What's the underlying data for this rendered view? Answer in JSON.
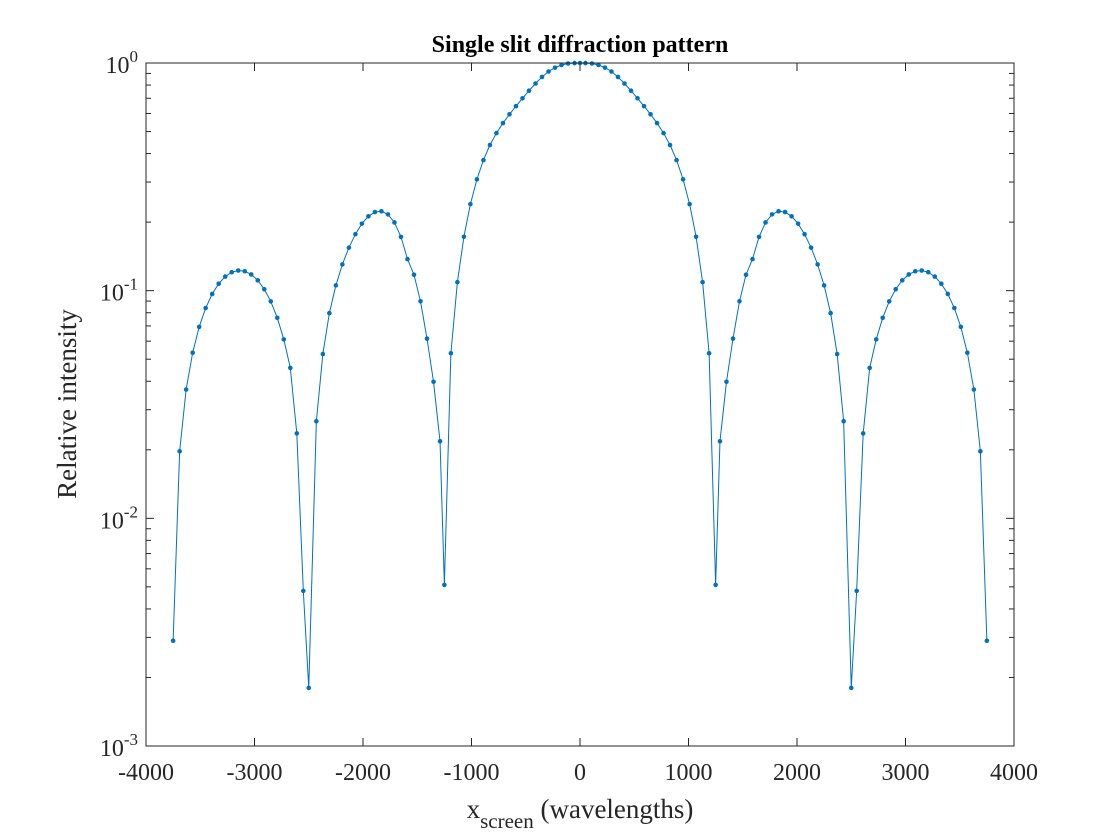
{
  "chart_data": {
    "type": "line",
    "title": "Single slit diffraction pattern",
    "xlabel": {
      "main": "x",
      "subscript": "screen",
      "suffix": " (wavelengths)"
    },
    "ylabel": "Relative intensity",
    "xlim": [
      -4000,
      4000
    ],
    "ylim": [
      0.001,
      1
    ],
    "yscale": "log",
    "grid": false,
    "x_ticks": [
      -4000,
      -3000,
      -2000,
      -1000,
      0,
      1000,
      2000,
      3000,
      4000
    ],
    "x_tick_labels": [
      "-4000",
      "-3000",
      "-2000",
      "-1000",
      "0",
      "1000",
      "2000",
      "3000",
      "4000"
    ],
    "y_ticks": [
      {
        "value": 1,
        "base": "10",
        "exp": "0"
      },
      {
        "value": 0.1,
        "base": "10",
        "exp": "-1"
      },
      {
        "value": 0.01,
        "base": "10",
        "exp": "-2"
      },
      {
        "value": 0.001,
        "base": "10",
        "exp": "-3"
      }
    ],
    "line_color": "#0072BD",
    "series": [
      {
        "x": [
          -3750,
          -3690,
          -3630,
          -3570,
          -3510,
          -3450,
          -3390,
          -3330,
          -3270,
          -3210,
          -3150,
          -3090,
          -3030,
          -2970,
          -2910,
          -2850,
          -2790,
          -2730,
          -2670,
          -2610,
          -2550,
          -2500,
          -2430,
          -2370,
          -2310,
          -2250,
          -2190,
          -2130,
          -2070,
          -2010,
          -1950,
          -1890,
          -1830,
          -1770,
          -1710,
          -1650,
          -1590,
          -1530,
          -1470,
          -1410,
          -1350,
          -1290,
          -1250,
          -1190,
          -1130,
          -1070,
          -1010,
          -950,
          -890,
          -830,
          -770,
          -710,
          -650,
          -590,
          -530,
          -470,
          -410,
          -350,
          -290,
          -230,
          -170,
          -110,
          -50,
          0,
          50,
          110,
          170,
          230,
          290,
          350,
          410,
          470,
          530,
          590,
          650,
          710,
          770,
          830,
          890,
          950,
          1010,
          1070,
          1130,
          1190,
          1250,
          1290,
          1350,
          1410,
          1470,
          1530,
          1590,
          1650,
          1710,
          1770,
          1830,
          1890,
          1950,
          2010,
          2070,
          2130,
          2190,
          2250,
          2310,
          2370,
          2430,
          2500,
          2550,
          2610,
          2670,
          2730,
          2790,
          2850,
          2910,
          2970,
          3030,
          3090,
          3150,
          3210,
          3270,
          3330,
          3390,
          3450,
          3510,
          3570,
          3630,
          3690,
          3750
        ],
        "y": [
          0.0029,
          0.0197,
          0.0368,
          0.0534,
          0.0693,
          0.0839,
          0.0967,
          0.1073,
          0.1153,
          0.1205,
          0.1226,
          0.1217,
          0.1178,
          0.111,
          0.1015,
          0.0897,
          0.076,
          0.0611,
          0.0458,
          0.0236,
          0.0048,
          0.0018,
          0.0267,
          0.0527,
          0.0797,
          0.1055,
          0.1304,
          0.1545,
          0.177,
          0.1969,
          0.2122,
          0.2215,
          0.2232,
          0.2162,
          0.1993,
          0.1723,
          0.1376,
          0.1175,
          0.0898,
          0.0616,
          0.0398,
          0.0218,
          0.0051,
          0.0531,
          0.109,
          0.1725,
          0.2401,
          0.3083,
          0.3745,
          0.4362,
          0.4923,
          0.5446,
          0.5953,
          0.6465,
          0.6999,
          0.7556,
          0.8128,
          0.8685,
          0.9177,
          0.9543,
          0.98,
          0.995,
          0.9993,
          1.0,
          0.9993,
          0.995,
          0.98,
          0.9543,
          0.9177,
          0.8685,
          0.8128,
          0.7556,
          0.6999,
          0.6465,
          0.5953,
          0.5446,
          0.4923,
          0.4362,
          0.3745,
          0.3083,
          0.2401,
          0.1725,
          0.109,
          0.0531,
          0.0051,
          0.0218,
          0.0398,
          0.0616,
          0.0898,
          0.1175,
          0.1376,
          0.1723,
          0.1993,
          0.2162,
          0.2232,
          0.2215,
          0.2122,
          0.1969,
          0.177,
          0.1545,
          0.1304,
          0.1055,
          0.0797,
          0.0527,
          0.0267,
          0.0018,
          0.0048,
          0.0236,
          0.0458,
          0.0611,
          0.076,
          0.0897,
          0.1015,
          0.111,
          0.1178,
          0.1217,
          0.1226,
          0.1205,
          0.1153,
          0.1073,
          0.0967,
          0.0839,
          0.0693,
          0.0534,
          0.0368,
          0.0197,
          0.0029
        ]
      }
    ]
  }
}
